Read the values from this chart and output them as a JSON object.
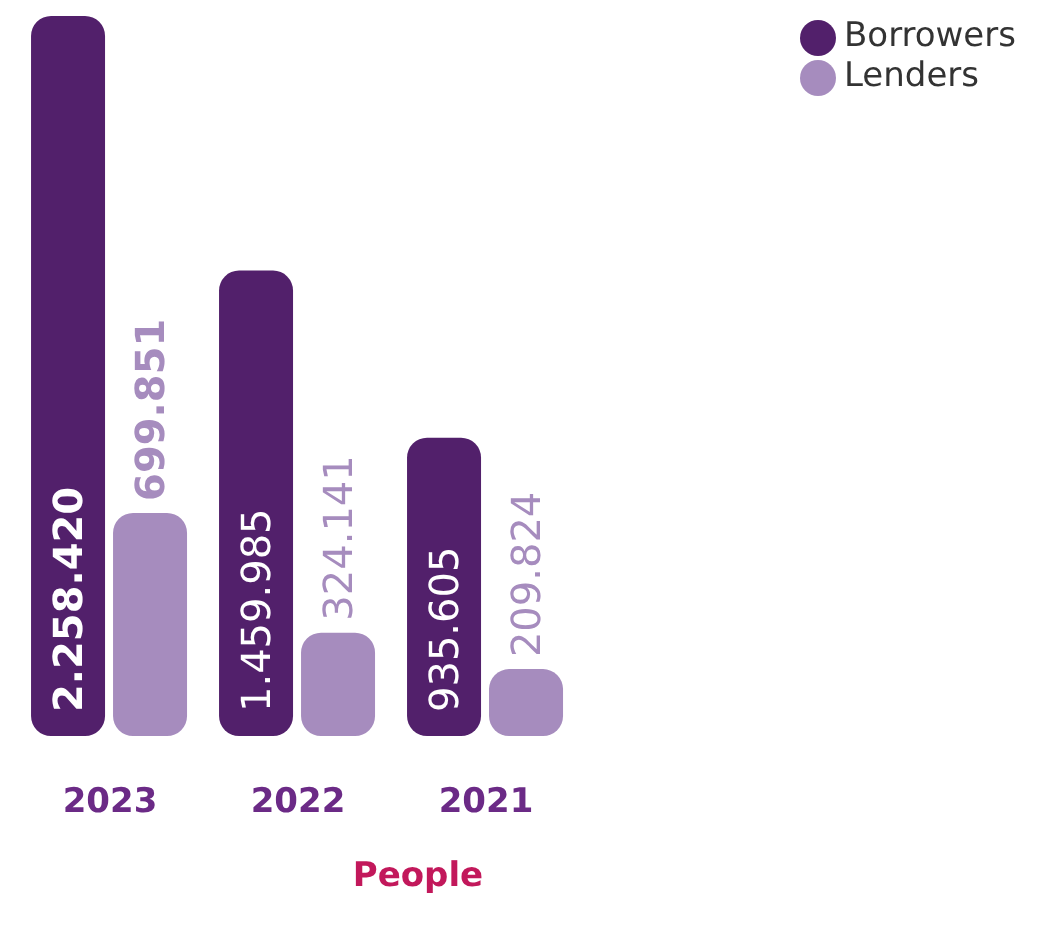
{
  "chart_data": {
    "type": "bar",
    "xlabel": "People",
    "categories": [
      "2023",
      "2022",
      "2021"
    ],
    "series": [
      {
        "name": "Borrowers",
        "color": "#52206b",
        "values": [
          2258420,
          1459985,
          935605
        ],
        "value_labels": [
          "2.258.420",
          "1.459.985",
          "935.605"
        ]
      },
      {
        "name": "Lenders",
        "color": "#a68cbe",
        "values": [
          699851,
          324141,
          209824
        ],
        "value_labels": [
          "699.851",
          "324.141",
          "209.824"
        ]
      }
    ],
    "legend": "top right"
  }
}
